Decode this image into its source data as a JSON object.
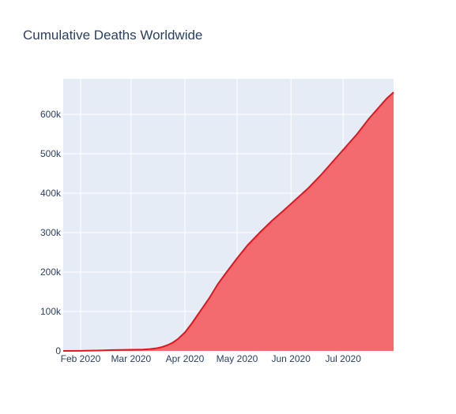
{
  "chart_data": {
    "type": "area",
    "title": "Cumulative Deaths Worldwide",
    "xlabel": "",
    "ylabel": "",
    "x_range": [
      "2020-01-22",
      "2020-07-30"
    ],
    "ylim": [
      0,
      690000
    ],
    "x_ticks": [
      {
        "date": "2020-02-01",
        "label": "Feb 2020"
      },
      {
        "date": "2020-03-01",
        "label": "Mar 2020"
      },
      {
        "date": "2020-04-01",
        "label": "Apr 2020"
      },
      {
        "date": "2020-05-01",
        "label": "May 2020"
      },
      {
        "date": "2020-06-01",
        "label": "Jun 2020"
      },
      {
        "date": "2020-07-01",
        "label": "Jul 2020"
      }
    ],
    "y_ticks": [
      {
        "value": 0,
        "label": "0"
      },
      {
        "value": 100000,
        "label": "100k"
      },
      {
        "value": 200000,
        "label": "200k"
      },
      {
        "value": 300000,
        "label": "300k"
      },
      {
        "value": 400000,
        "label": "400k"
      },
      {
        "value": 500000,
        "label": "500k"
      },
      {
        "value": 600000,
        "label": "600k"
      }
    ],
    "grid": true,
    "colors": {
      "plot_bg": "#e5ecf6",
      "grid": "#ffffff",
      "line": "#e8141c",
      "fill": "#f26b6e",
      "text": "#2a3f5f"
    },
    "series": [
      {
        "x": [
          "2020-01-22",
          "2020-02-01",
          "2020-02-10",
          "2020-02-20",
          "2020-03-01",
          "2020-03-08",
          "2020-03-12",
          "2020-03-16",
          "2020-03-19",
          "2020-03-22",
          "2020-03-25",
          "2020-03-28",
          "2020-04-01",
          "2020-04-05",
          "2020-04-10",
          "2020-04-15",
          "2020-04-20",
          "2020-04-25",
          "2020-05-01",
          "2020-05-07",
          "2020-05-14",
          "2020-05-21",
          "2020-05-28",
          "2020-06-04",
          "2020-06-11",
          "2020-06-18",
          "2020-06-25",
          "2020-07-02",
          "2020-07-09",
          "2020-07-16",
          "2020-07-20",
          "2020-07-23",
          "2020-07-26",
          "2020-07-30"
        ],
        "y": [
          17,
          259,
          1018,
          2247,
          3000,
          3600,
          4700,
          7000,
          10000,
          14700,
          21000,
          30500,
          47000,
          70000,
          102000,
          134000,
          170000,
          200000,
          235000,
          268000,
          300000,
          330000,
          357000,
          385000,
          413000,
          445000,
          480000,
          515000,
          550000,
          590000,
          610000,
          625000,
          640000,
          656000
        ]
      }
    ]
  }
}
